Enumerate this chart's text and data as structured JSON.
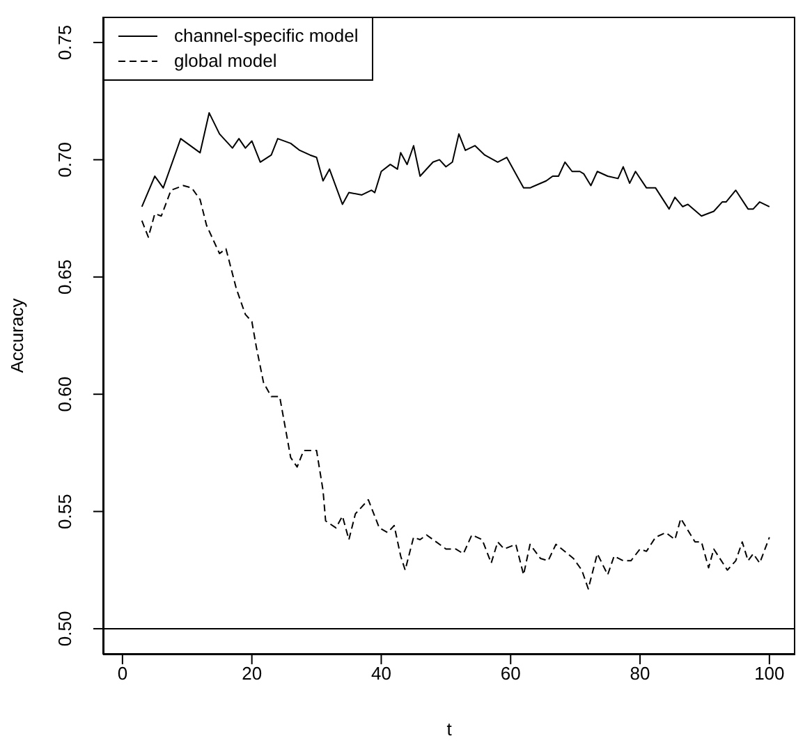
{
  "chart_data": {
    "type": "line",
    "xlabel": "t",
    "ylabel": "Accuracy",
    "xlim": [
      -3,
      104
    ],
    "ylim": [
      0.489,
      0.761
    ],
    "xticks": [
      0,
      20,
      40,
      60,
      80,
      100
    ],
    "yticks": [
      {
        "value": 0.5,
        "label": "0.50"
      },
      {
        "value": 0.55,
        "label": "0.55"
      },
      {
        "value": 0.6,
        "label": "0.60"
      },
      {
        "value": 0.65,
        "label": "0.65"
      },
      {
        "value": 0.7,
        "label": "0.70"
      },
      {
        "value": 0.75,
        "label": "0.75"
      }
    ],
    "grid": false,
    "legend": "top left",
    "marker": "none",
    "ref_lines": [
      {
        "axis": "y",
        "value": 0.5,
        "color": "#000000"
      }
    ],
    "series": [
      {
        "name": "channel-specific model",
        "color": "#000000",
        "line_style": "solid",
        "x": [
          3,
          5,
          6.3,
          9,
          12,
          13.4,
          15,
          17,
          18,
          19,
          20,
          21.3,
          23,
          24,
          26,
          27.4,
          29,
          30,
          31,
          32,
          34,
          35,
          37,
          38.5,
          39,
          40,
          41.4,
          42.5,
          43,
          44,
          45,
          46,
          48,
          49,
          50,
          51,
          52,
          53,
          54.5,
          56,
          58,
          59.4,
          62,
          63,
          65.5,
          66.5,
          67.4,
          68.4,
          69.5,
          70.7,
          71.3,
          72.4,
          73.4,
          75,
          76.6,
          77.4,
          78.4,
          79.3,
          81,
          82.4,
          84.5,
          85.4,
          86.6,
          87.4,
          89.5,
          91.4,
          92.7,
          93.3,
          94.8,
          96.7,
          97.5,
          98.5,
          100
        ],
        "values": [
          0.68,
          0.693,
          0.688,
          0.709,
          0.703,
          0.72,
          0.711,
          0.705,
          0.709,
          0.705,
          0.708,
          0.699,
          0.702,
          0.709,
          0.707,
          0.704,
          0.702,
          0.701,
          0.691,
          0.696,
          0.681,
          0.686,
          0.685,
          0.687,
          0.686,
          0.695,
          0.698,
          0.696,
          0.703,
          0.698,
          0.706,
          0.693,
          0.699,
          0.7,
          0.697,
          0.699,
          0.711,
          0.704,
          0.706,
          0.702,
          0.699,
          0.701,
          0.688,
          0.688,
          0.691,
          0.693,
          0.693,
          0.699,
          0.695,
          0.695,
          0.694,
          0.689,
          0.695,
          0.693,
          0.692,
          0.697,
          0.69,
          0.695,
          0.688,
          0.688,
          0.679,
          0.684,
          0.68,
          0.681,
          0.676,
          0.678,
          0.682,
          0.682,
          0.687,
          0.679,
          0.679,
          0.682,
          0.68
        ]
      },
      {
        "name": "global model",
        "color": "#000000",
        "line_style": "dashed",
        "x": [
          3,
          4,
          5,
          6,
          7.5,
          9.4,
          10.7,
          12,
          13,
          14,
          15,
          16,
          17.6,
          19,
          20,
          20.7,
          21.8,
          23,
          24.3,
          26,
          27,
          28,
          30,
          31,
          31.4,
          33,
          34,
          35,
          36,
          38,
          39.7,
          41,
          42,
          43,
          43.7,
          45,
          46,
          47,
          50,
          51.5,
          52.7,
          54,
          55.6,
          57,
          58,
          59,
          60.8,
          62,
          63,
          64.6,
          65.8,
          67,
          69.7,
          71,
          72,
          73.4,
          75,
          76,
          77.4,
          78.6,
          80,
          81,
          82.4,
          84,
          85.4,
          86.3,
          88.5,
          89.5,
          90.6,
          91.4,
          93.5,
          94.8,
          95.8,
          96.7,
          97.5,
          98.5,
          100
        ],
        "values": [
          0.674,
          0.667,
          0.677,
          0.676,
          0.687,
          0.689,
          0.688,
          0.683,
          0.672,
          0.666,
          0.66,
          0.662,
          0.645,
          0.634,
          0.631,
          0.62,
          0.605,
          0.599,
          0.599,
          0.573,
          0.569,
          0.576,
          0.576,
          0.559,
          0.546,
          0.543,
          0.548,
          0.538,
          0.549,
          0.555,
          0.543,
          0.541,
          0.544,
          0.531,
          0.525,
          0.539,
          0.538,
          0.54,
          0.534,
          0.534,
          0.532,
          0.54,
          0.538,
          0.528,
          0.537,
          0.534,
          0.536,
          0.523,
          0.536,
          0.53,
          0.529,
          0.536,
          0.53,
          0.525,
          0.517,
          0.532,
          0.523,
          0.531,
          0.529,
          0.529,
          0.534,
          0.533,
          0.539,
          0.541,
          0.538,
          0.547,
          0.537,
          0.537,
          0.526,
          0.534,
          0.525,
          0.529,
          0.537,
          0.529,
          0.532,
          0.528,
          0.539
        ]
      }
    ]
  }
}
